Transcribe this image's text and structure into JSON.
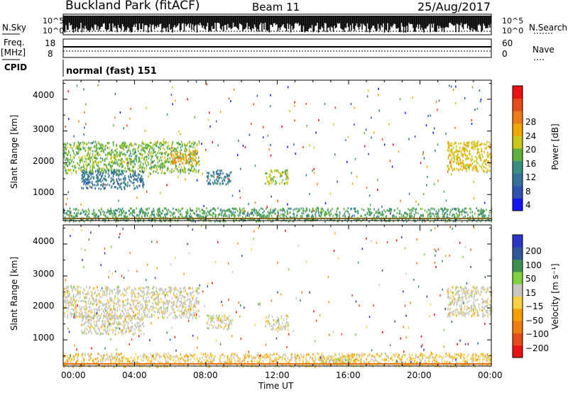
{
  "header": {
    "station": "Buckland Park (fitACF)",
    "beam": "Beam 11",
    "date": "25/Aug/2017"
  },
  "status_panels": {
    "nsky_label": "N.Sky",
    "nsearch_label": "N.Search",
    "log_top_label": "10^5",
    "log_bottom_label": "10^0",
    "freq_label_line1": "Freq.",
    "freq_label_line2": "[MHz]",
    "freq_ticks": [
      "18",
      "8"
    ],
    "nave_label": "Nave",
    "nave_ticks": [
      "60",
      "0"
    ],
    "cpid_label": "CPID",
    "cpid_value": "normal (fast) 151"
  },
  "colors": {
    "power_scale": [
      "#1414ff",
      "#2f52b0",
      "#35719a",
      "#3a8e80",
      "#5fb040",
      "#c7c81a",
      "#f0a800",
      "#ef7a18",
      "#e84b18",
      "#ee1111"
    ],
    "velocity_scale": [
      "#ee1111",
      "#e84b18",
      "#f07c10",
      "#f5a000",
      "#f8d040",
      "#c8c8c0",
      "#80d040",
      "#3c9050",
      "#305898",
      "#2a36c8"
    ]
  },
  "chart_data": [
    {
      "type": "heatmap",
      "panel": "power",
      "xlabel": "Time UT",
      "ylabel": "Slant Range [km]",
      "xlim": [
        0,
        24
      ],
      "ylim": [
        180,
        4600
      ],
      "x_ticks": [
        "00:00",
        "04:00",
        "08:00",
        "12:00",
        "16:00",
        "20:00",
        "00:00"
      ],
      "y_ticks": [
        "1000",
        "2000",
        "3000",
        "4000"
      ],
      "colorbar_label": "Power [dB]",
      "colorbar_ticks": [
        "28",
        "24",
        "20",
        "16",
        "12",
        "8",
        "4"
      ],
      "clim": [
        0,
        30
      ],
      "regions": [
        {
          "t_start": 0.0,
          "t_end": 7.6,
          "range_min": 1700,
          "range_max": 2700,
          "value": 14
        },
        {
          "t_start": 6.0,
          "t_end": 7.5,
          "range_min": 2000,
          "range_max": 2400,
          "value": 20
        },
        {
          "t_start": 1.0,
          "t_end": 4.5,
          "range_min": 1200,
          "range_max": 1800,
          "value": 8
        },
        {
          "t_start": 8.0,
          "t_end": 9.4,
          "range_min": 1350,
          "range_max": 1800,
          "value": 8
        },
        {
          "t_start": 11.3,
          "t_end": 12.6,
          "range_min": 1350,
          "range_max": 1800,
          "value": 16
        },
        {
          "t_start": 21.5,
          "t_end": 24.0,
          "range_min": 1750,
          "range_max": 2700,
          "value": 18
        },
        {
          "t_start": 0.0,
          "t_end": 24.0,
          "range_min": 180,
          "range_max": 600,
          "value": 12
        }
      ]
    },
    {
      "type": "heatmap",
      "panel": "velocity",
      "xlabel": "Time UT",
      "ylabel": "Slant Range [km]",
      "xlim": [
        0,
        24
      ],
      "ylim": [
        180,
        4600
      ],
      "x_ticks": [
        "00:00",
        "04:00",
        "08:00",
        "12:00",
        "16:00",
        "20:00",
        "00:00"
      ],
      "y_ticks": [
        "1000",
        "2000",
        "3000",
        "4000"
      ],
      "colorbar_label": "Velocity [m s⁻¹]",
      "colorbar_ticks": [
        "200",
        "100",
        "50",
        "15",
        "−15",
        "−50",
        "−100",
        "−200"
      ],
      "clim": [
        -250,
        250
      ],
      "regions": [
        {
          "t_start": 0.0,
          "t_end": 7.6,
          "range_min": 1700,
          "range_max": 2700,
          "value": 0
        },
        {
          "t_start": 1.0,
          "t_end": 4.5,
          "range_min": 1200,
          "range_max": 1800,
          "value": 0
        },
        {
          "t_start": 8.0,
          "t_end": 9.4,
          "range_min": 1350,
          "range_max": 1800,
          "value": 0
        },
        {
          "t_start": 11.3,
          "t_end": 12.6,
          "range_min": 1350,
          "range_max": 1800,
          "value": 0
        },
        {
          "t_start": 21.5,
          "t_end": 24.0,
          "range_min": 1750,
          "range_max": 2700,
          "value": 0
        },
        {
          "t_start": 14.5,
          "t_end": 17.0,
          "range_min": 250,
          "range_max": 450,
          "value": 40
        },
        {
          "t_start": 0.0,
          "t_end": 24.0,
          "range_min": 180,
          "range_max": 600,
          "value": -20
        }
      ]
    }
  ]
}
